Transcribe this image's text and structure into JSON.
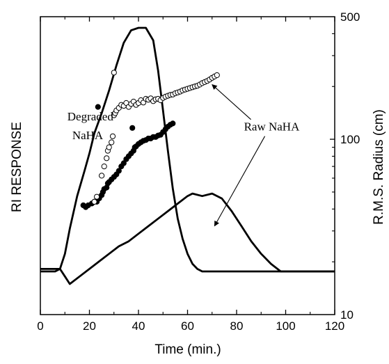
{
  "chart_data": {
    "type": "scatter",
    "title": "",
    "xlabel": "Time (min.)",
    "ylabel_left": "RI RESPONSE",
    "ylabel_right": "R.M.S. Radius (cm)",
    "xlim": [
      0,
      120
    ],
    "x_ticks": [
      0,
      20,
      40,
      60,
      80,
      100,
      120
    ],
    "y_right_scale": "log",
    "y_right_lim": [
      10,
      500
    ],
    "y_right_ticks": [
      10,
      100,
      500
    ],
    "grid": false,
    "legend": "none",
    "colors": {
      "line": "#000000",
      "marker_filled": "#000000",
      "marker_open_fill": "#ffffff"
    },
    "series": [
      {
        "kind": "line",
        "axis": "left-relative",
        "x": [
          0,
          5,
          8,
          10,
          12,
          16,
          20,
          24,
          28,
          32,
          36,
          40,
          44,
          48,
          52,
          56,
          60,
          62,
          66,
          70,
          74,
          78,
          82,
          86,
          90,
          94,
          98,
          100,
          105,
          110,
          115,
          120
        ],
        "y": [
          0.06,
          0.06,
          0.06,
          0.03,
          0.0,
          0.03,
          0.06,
          0.09,
          0.12,
          0.15,
          0.17,
          0.2,
          0.23,
          0.26,
          0.29,
          0.32,
          0.35,
          0.36,
          0.35,
          0.36,
          0.34,
          0.29,
          0.23,
          0.17,
          0.12,
          0.08,
          0.05,
          0.05,
          0.05,
          0.05,
          0.05,
          0.05
        ]
      },
      {
        "kind": "line",
        "axis": "left-relative",
        "x": [
          0,
          3,
          6,
          8,
          10,
          12,
          15,
          18,
          20,
          22,
          25,
          28,
          31,
          34,
          37,
          40,
          43,
          46,
          48,
          50,
          52,
          54,
          56,
          58,
          60,
          62,
          64,
          66,
          70,
          75,
          80,
          90,
          100,
          120
        ],
        "y": [
          0.05,
          0.05,
          0.05,
          0.06,
          0.12,
          0.22,
          0.35,
          0.45,
          0.52,
          0.6,
          0.68,
          0.77,
          0.87,
          0.96,
          1.01,
          1.02,
          1.02,
          0.97,
          0.85,
          0.69,
          0.53,
          0.38,
          0.26,
          0.18,
          0.12,
          0.08,
          0.06,
          0.05,
          0.05,
          0.05,
          0.05,
          0.05,
          0.05,
          0.05
        ]
      },
      {
        "kind": "points",
        "marker": "filled-circle",
        "axis": "right",
        "x": [
          17.5,
          18.5,
          19.5,
          21,
          22,
          23,
          24,
          25,
          25.5,
          26,
          27,
          27.5,
          28,
          29,
          30,
          31,
          32,
          33,
          34,
          35,
          36,
          37,
          38,
          38.5,
          39,
          40,
          41,
          42,
          43,
          44,
          45,
          46,
          47,
          48,
          49,
          50,
          51,
          52,
          53,
          54,
          23.5,
          37.5
        ],
        "y": [
          42,
          41,
          42,
          43,
          44,
          44,
          46,
          48,
          50,
          52,
          53,
          56,
          57,
          59,
          61,
          63,
          66,
          70,
          73,
          77,
          80,
          83,
          86,
          90,
          91,
          94,
          96,
          98,
          99,
          101,
          101,
          103,
          103,
          105,
          106,
          110,
          114,
          118,
          121,
          123,
          153,
          116
        ]
      },
      {
        "kind": "points",
        "marker": "open-circle",
        "axis": "right",
        "x": [
          22,
          23,
          25,
          26,
          27,
          27.5,
          28,
          29,
          29.5,
          30,
          30.5,
          31,
          32,
          33,
          34,
          35,
          36,
          37,
          38,
          39,
          40,
          41,
          42,
          43,
          44,
          45,
          46,
          47,
          48,
          49,
          50,
          51,
          52,
          53,
          54,
          55,
          56,
          57,
          58,
          59,
          60,
          61,
          62,
          63,
          64,
          65,
          66,
          67,
          68,
          69,
          70,
          71,
          72,
          30
        ],
        "y": [
          44,
          47,
          62,
          70,
          78,
          86,
          90,
          96,
          104,
          137,
          141,
          146,
          151,
          157,
          155,
          161,
          153,
          159,
          164,
          157,
          161,
          167,
          162,
          170,
          168,
          171,
          165,
          169,
          170,
          167,
          172,
          175,
          177,
          179,
          180,
          183,
          185,
          187,
          190,
          192,
          194,
          196,
          198,
          200,
          202,
          205,
          209,
          212,
          215,
          219,
          224,
          228,
          232,
          240
        ]
      }
    ],
    "annotations": [
      {
        "text": "Degraded",
        "x": 11,
        "y": 128
      },
      {
        "text": "NaHA",
        "x": 13,
        "y": 100
      },
      {
        "text": "Raw NaHA",
        "x": 83,
        "y": 112
      }
    ]
  }
}
